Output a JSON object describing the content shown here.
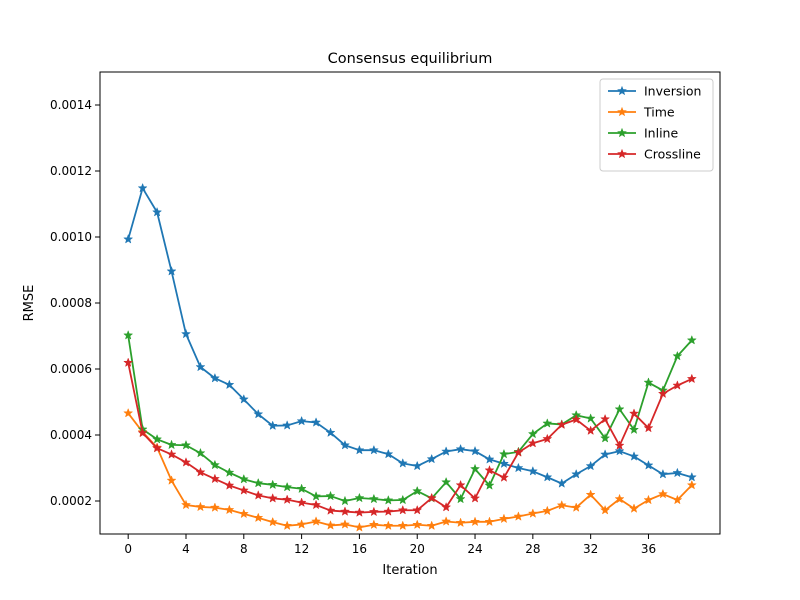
{
  "chart_data": {
    "type": "line",
    "title": "Consensus equilibrium",
    "xlabel": "Iteration",
    "ylabel": "RMSE",
    "xlim": [
      -1.95,
      40.95
    ],
    "ylim": [
      0.0001,
      0.0015
    ],
    "x_ticks": [
      0,
      4,
      8,
      12,
      16,
      20,
      24,
      28,
      32,
      36
    ],
    "x_tick_labels": [
      "0",
      "4",
      "8",
      "12",
      "16",
      "20",
      "24",
      "28",
      "32",
      "36"
    ],
    "y_ticks": [
      0.0002,
      0.0004,
      0.0006,
      0.0008,
      0.001,
      0.0012,
      0.0014
    ],
    "y_tick_labels": [
      "0.0002",
      "0.0004",
      "0.0006",
      "0.0008",
      "0.0010",
      "0.0012",
      "0.0014"
    ],
    "grid": false,
    "legend_position": "top-right",
    "marker": "star",
    "x": [
      0,
      1,
      2,
      3,
      4,
      5,
      6,
      7,
      8,
      9,
      10,
      11,
      12,
      13,
      14,
      15,
      16,
      17,
      18,
      19,
      20,
      21,
      22,
      23,
      24,
      25,
      26,
      27,
      28,
      29,
      30,
      31,
      32,
      33,
      34,
      35,
      36,
      37,
      38,
      39
    ],
    "series": [
      {
        "name": "Inversion",
        "color": "#1f77b4",
        "values": [
          0.000993,
          0.001148,
          0.001075,
          0.000896,
          0.000706,
          0.000606,
          0.000572,
          0.000552,
          0.000508,
          0.000463,
          0.000428,
          0.000429,
          0.000442,
          0.000438,
          0.000407,
          0.000369,
          0.000354,
          0.000354,
          0.000342,
          0.000314,
          0.000306,
          0.000327,
          0.00035,
          0.000357,
          0.000351,
          0.000326,
          0.000313,
          0.0003,
          0.00029,
          0.000272,
          0.000253,
          0.000281,
          0.000306,
          0.000341,
          0.000351,
          0.000335,
          0.000308,
          0.000281,
          0.000285,
          0.000272
        ]
      },
      {
        "name": "Time",
        "color": "#ff7f0e",
        "values": [
          0.000466,
          0.000409,
          0.000362,
          0.000262,
          0.000188,
          0.000182,
          0.00018,
          0.000173,
          0.000161,
          0.000149,
          0.000136,
          0.000125,
          0.000129,
          0.000138,
          0.000126,
          0.000129,
          0.00012,
          0.000128,
          0.000125,
          0.000125,
          0.000128,
          0.000125,
          0.000138,
          0.000134,
          0.000137,
          0.000137,
          0.000146,
          0.000153,
          0.000162,
          0.00017,
          0.000187,
          0.00018,
          0.000219,
          0.000172,
          0.000206,
          0.000177,
          0.000203,
          0.000221,
          0.000203,
          0.000248
        ]
      },
      {
        "name": "Inline",
        "color": "#2ca02c",
        "values": [
          0.000702,
          0.000417,
          0.000387,
          0.00037,
          0.000369,
          0.000345,
          0.000309,
          0.000286,
          0.000266,
          0.000254,
          0.000249,
          0.000242,
          0.000237,
          0.000214,
          0.000215,
          0.0002,
          0.000209,
          0.000206,
          0.000202,
          0.000203,
          0.00023,
          0.000208,
          0.000257,
          0.000206,
          0.000297,
          0.000247,
          0.000342,
          0.000349,
          0.000403,
          0.000435,
          0.000432,
          0.00046,
          0.00045,
          0.00039,
          0.000478,
          0.000416,
          0.000559,
          0.000535,
          0.000639,
          0.000687
        ]
      },
      {
        "name": "Crossline",
        "color": "#d62728",
        "values": [
          0.000619,
          0.000406,
          0.00036,
          0.000341,
          0.000317,
          0.000287,
          0.000267,
          0.000247,
          0.000232,
          0.000217,
          0.000208,
          0.000204,
          0.000195,
          0.000188,
          0.000171,
          0.000168,
          0.000165,
          0.000167,
          0.000168,
          0.000172,
          0.000172,
          0.000209,
          0.000181,
          0.000248,
          0.000208,
          0.000293,
          0.000271,
          0.000347,
          0.000375,
          0.000388,
          0.000431,
          0.000447,
          0.000413,
          0.000448,
          0.000368,
          0.000465,
          0.000421,
          0.000525,
          0.00055,
          0.00057
        ]
      }
    ]
  }
}
